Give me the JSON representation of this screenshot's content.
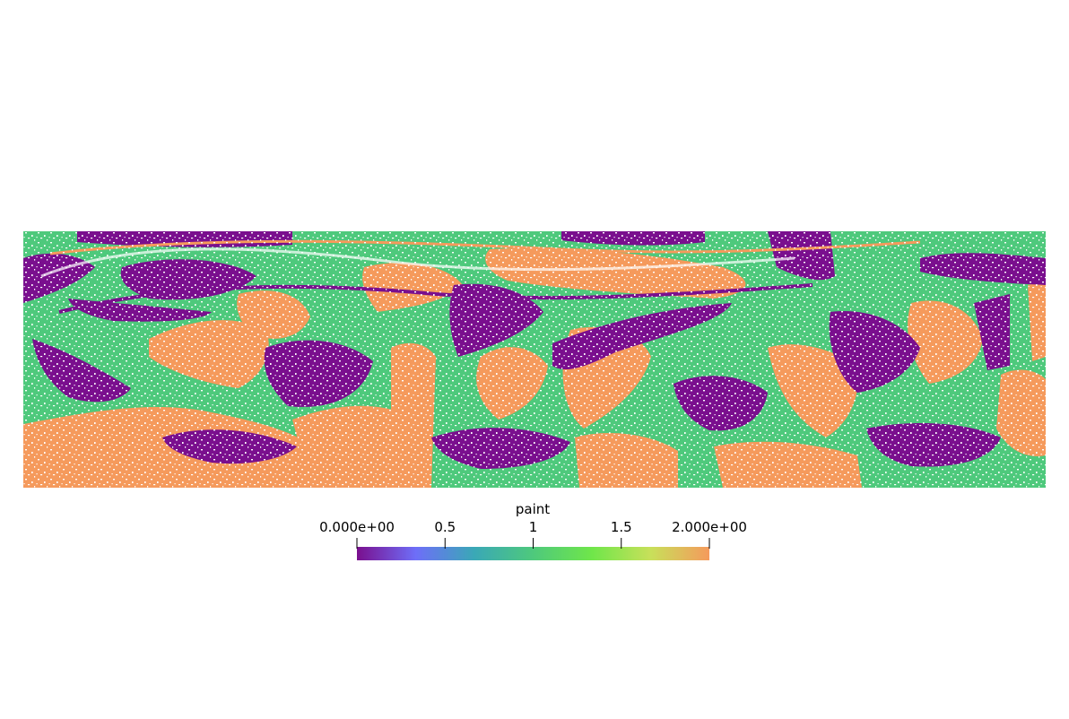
{
  "colors": {
    "purple": "#7a0f8e",
    "green": "#4ec97c",
    "orange": "#f59a5c",
    "background": "#ffffff"
  },
  "colorbar": {
    "title": "paint",
    "min": 0,
    "max": 2,
    "ticks": [
      {
        "value": 0,
        "label": "0.000e+00"
      },
      {
        "value": 0.5,
        "label": "0.5"
      },
      {
        "value": 1,
        "label": "1"
      },
      {
        "value": 1.5,
        "label": "1.5"
      },
      {
        "value": 2,
        "label": "2.000e+00"
      }
    ],
    "stops": [
      "#7a0f8e",
      "#6e6ef8",
      "#3aa8b6",
      "#4ec97c",
      "#6fe64a",
      "#c8e05a",
      "#f59a5c"
    ]
  }
}
